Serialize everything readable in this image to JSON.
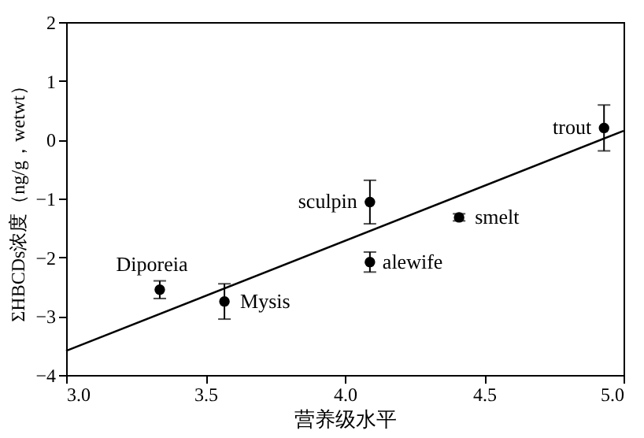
{
  "chart_data": {
    "type": "scatter",
    "xlabel": "营养级水平",
    "ylabel": "ΣHBCDs浓度（ng/g，wetwt）",
    "xlim": [
      3.0,
      5.0
    ],
    "xticks": [
      {
        "value": 3.0,
        "label": "3.0"
      },
      3.5,
      {
        "value": 4.0,
        "label": "4.0"
      },
      4.5,
      {
        "value": 5.0,
        "label": "5.0"
      }
    ],
    "ylim": [
      -4,
      2
    ],
    "yticks": [
      -4,
      -3,
      -2,
      -1,
      0,
      1,
      2
    ],
    "grid": false,
    "series": [
      {
        "marker": "circle",
        "color": "#000000",
        "x": [
          3.336,
          3.568,
          4.09,
          4.09,
          4.41,
          4.93
        ],
        "values": [
          -2.55,
          -2.75,
          -1.06,
          -2.08,
          -1.32,
          0.2
        ],
        "errors": [
          0.15,
          0.3,
          0.37,
          0.17,
          0.06,
          0.39
        ]
      },
      {
        "type": "line",
        "color": "#000000",
        "x": [
          3.0,
          5.0
        ],
        "values": [
          -3.59,
          0.15
        ],
        "line_style": "solid"
      }
    ],
    "annotations": [
      {
        "text": "Diporeia",
        "x": 3.336,
        "y": -2.55
      },
      {
        "text": "Mysis",
        "x": 3.568,
        "y": -2.75
      },
      {
        "text": "sculpin",
        "x": 4.09,
        "y": -1.06
      },
      {
        "text": "alewife",
        "x": 4.09,
        "y": -2.08
      },
      {
        "text": "smelt",
        "x": 4.41,
        "y": -1.32
      },
      {
        "text": "trout",
        "x": 4.93,
        "y": 0.2
      }
    ]
  }
}
